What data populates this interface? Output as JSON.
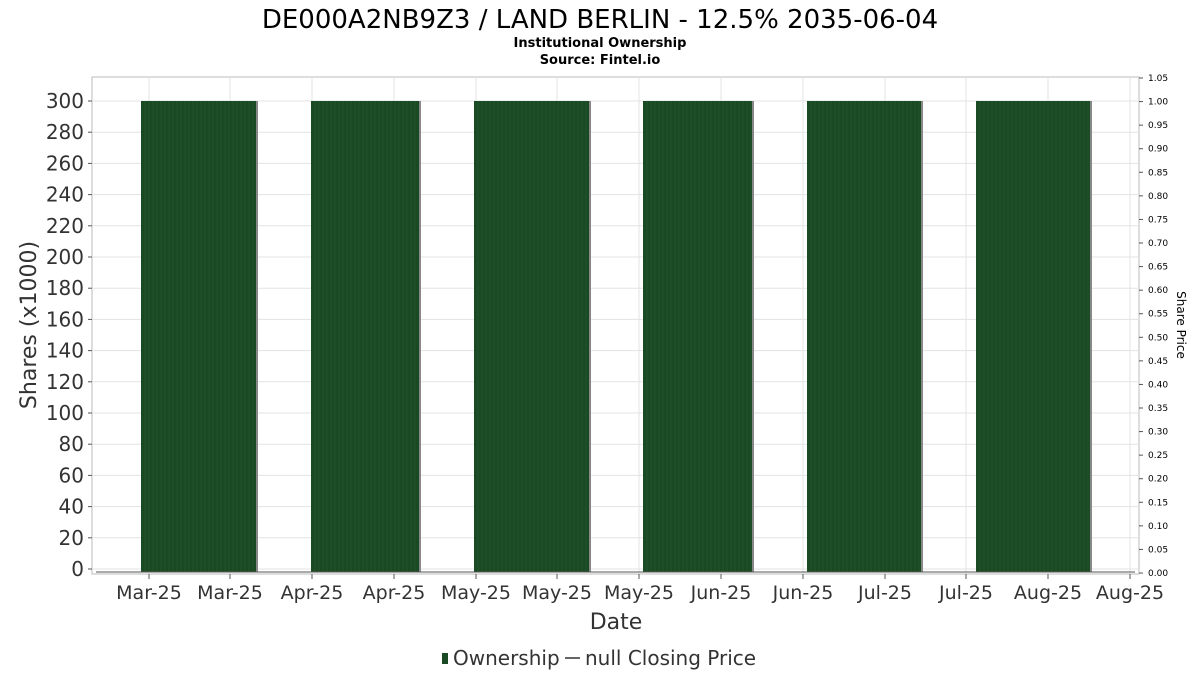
{
  "chart_data": {
    "type": "bar",
    "title": "DE000A2NB9Z3 / LAND BERLIN - 12.5% 2035-06-04",
    "subtitle_lines": [
      "Institutional Ownership",
      "Source: Fintel.io"
    ],
    "xlabel": "Date",
    "ylabel": "Shares (x1000)",
    "y2label": "Share Price",
    "x_tick_labels": [
      "Mar-25",
      "Mar-25",
      "Apr-25",
      "Apr-25",
      "May-25",
      "May-25",
      "May-25",
      "Jun-25",
      "Jun-25",
      "Jul-25",
      "Jul-25",
      "Aug-25",
      "Aug-25"
    ],
    "ylim": [
      0,
      310
    ],
    "y_ticks": [
      0,
      20,
      40,
      60,
      80,
      100,
      120,
      140,
      160,
      180,
      200,
      220,
      240,
      260,
      280,
      300
    ],
    "y2lim": [
      0,
      1.05
    ],
    "y2_ticks": [
      "0.00",
      "0.05",
      "0.10",
      "0.15",
      "0.20",
      "0.25",
      "0.30",
      "0.35",
      "0.40",
      "0.45",
      "0.50",
      "0.55",
      "0.60",
      "0.65",
      "0.70",
      "0.75",
      "0.80",
      "0.85",
      "0.90",
      "0.95",
      "1.00",
      "1.05"
    ],
    "series": [
      {
        "name": "Ownership",
        "color": "#1a4a24",
        "bars": [
          {
            "start": "Mar-25",
            "end": "Mar-25",
            "value": 300
          },
          {
            "start": "Apr-25",
            "end": "Apr-25",
            "value": 300
          },
          {
            "start": "May-25",
            "end": "May-25",
            "value": 300
          },
          {
            "start": "Jun-25",
            "end": "Jun-25",
            "value": 300
          },
          {
            "start": "Jun-25",
            "end": "Jul-25",
            "value": 300
          },
          {
            "start": "Jul-25",
            "end": "Aug-25",
            "value": 300
          }
        ]
      },
      {
        "name": "null Closing Price",
        "color": "#666666",
        "values": []
      }
    ],
    "grid": true,
    "legend_position": "bottom-center"
  }
}
